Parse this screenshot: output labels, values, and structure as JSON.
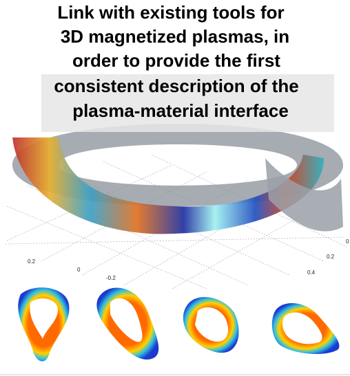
{
  "title_lines": [
    "Link with existing tools for",
    "3D magnetized plasmas, in",
    "order  to provide the first",
    "consistent description of the",
    "plasma-material interface"
  ],
  "axis_labels": {
    "left": [
      "0.2",
      "0",
      "-0.2"
    ],
    "right": [
      "0",
      "0.2",
      "0.4"
    ]
  }
}
